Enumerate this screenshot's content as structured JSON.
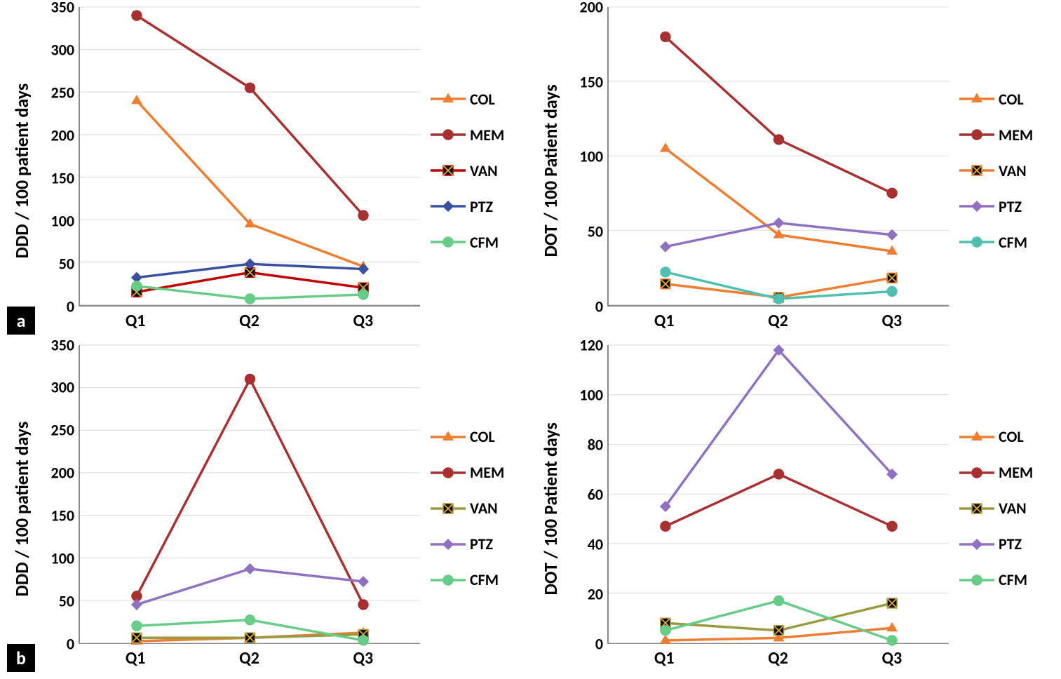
{
  "charts": [
    {
      "id": "a-left",
      "panel_label": "a",
      "ylabel": "DDD / 100 patient days",
      "ymin": 0,
      "ymax": 350,
      "ystep": 50,
      "categories": [
        "Q1",
        "Q2",
        "Q3"
      ],
      "series": [
        {
          "name": "COL",
          "color": "#ed7d31",
          "marker": "triangle",
          "fill": "#ed7d31",
          "values": [
            240,
            95,
            45
          ]
        },
        {
          "name": "MEM",
          "color": "#a83030",
          "marker": "circle",
          "fill": "#a83030",
          "values": [
            340,
            255,
            105
          ]
        },
        {
          "name": "VAN",
          "color": "#c00000",
          "marker": "square-x",
          "fill": "#000000",
          "values": [
            15,
            38,
            20
          ]
        },
        {
          "name": "PTZ",
          "color": "#3950a0",
          "marker": "diamond",
          "fill": "#3950a0",
          "values": [
            32,
            48,
            42
          ]
        },
        {
          "name": "CFM",
          "color": "#66cc88",
          "marker": "circle",
          "fill": "#66cc88",
          "values": [
            22,
            7,
            12
          ]
        }
      ]
    },
    {
      "id": "a-right",
      "panel_label": "",
      "ylabel": "DOT / 100 Patient days",
      "ymin": 0,
      "ymax": 200,
      "ystep": 50,
      "categories": [
        "Q1",
        "Q2",
        "Q3"
      ],
      "series": [
        {
          "name": "COL",
          "color": "#ed7d31",
          "marker": "triangle",
          "fill": "#ed7d31",
          "values": [
            105,
            47,
            36
          ]
        },
        {
          "name": "MEM",
          "color": "#a83030",
          "marker": "circle",
          "fill": "#a83030",
          "values": [
            180,
            111,
            75
          ]
        },
        {
          "name": "VAN",
          "color": "#ed7d31",
          "marker": "square-x",
          "fill": "#000000",
          "values": [
            14,
            5,
            18
          ]
        },
        {
          "name": "PTZ",
          "color": "#9070c0",
          "marker": "diamond",
          "fill": "#9070c0",
          "values": [
            39,
            55,
            47
          ]
        },
        {
          "name": "CFM",
          "color": "#4fc0b0",
          "marker": "circle",
          "fill": "#4fc0b0",
          "values": [
            22,
            4,
            9
          ]
        }
      ]
    },
    {
      "id": "b-left",
      "panel_label": "b",
      "ylabel": "DDD / 100 patient days",
      "ymin": 0,
      "ymax": 350,
      "ystep": 50,
      "categories": [
        "Q1",
        "Q2",
        "Q3"
      ],
      "series": [
        {
          "name": "COL",
          "color": "#ed7d31",
          "marker": "triangle",
          "fill": "#ed7d31",
          "values": [
            2,
            6,
            12
          ]
        },
        {
          "name": "MEM",
          "color": "#a83030",
          "marker": "circle",
          "fill": "#a83030",
          "values": [
            55,
            310,
            45
          ]
        },
        {
          "name": "VAN",
          "color": "#9a9a40",
          "marker": "square-x",
          "fill": "#000000",
          "values": [
            6,
            6,
            10
          ]
        },
        {
          "name": "PTZ",
          "color": "#9070c0",
          "marker": "diamond",
          "fill": "#9070c0",
          "values": [
            45,
            87,
            72
          ]
        },
        {
          "name": "CFM",
          "color": "#66cc88",
          "marker": "circle",
          "fill": "#66cc88",
          "values": [
            20,
            27,
            3
          ]
        }
      ]
    },
    {
      "id": "b-right",
      "panel_label": "",
      "ylabel": "DOT / 100 Patient days",
      "ymin": 0,
      "ymax": 120,
      "ystep": 20,
      "categories": [
        "Q1",
        "Q2",
        "Q3"
      ],
      "series": [
        {
          "name": "COL",
          "color": "#ed7d31",
          "marker": "triangle",
          "fill": "#ed7d31",
          "values": [
            1,
            2,
            6
          ]
        },
        {
          "name": "MEM",
          "color": "#a83030",
          "marker": "circle",
          "fill": "#a83030",
          "values": [
            47,
            68,
            47
          ]
        },
        {
          "name": "VAN",
          "color": "#9a9a40",
          "marker": "square-x",
          "fill": "#000000",
          "values": [
            8,
            5,
            16
          ]
        },
        {
          "name": "PTZ",
          "color": "#9070c0",
          "marker": "diamond",
          "fill": "#9070c0",
          "values": [
            55,
            118,
            68
          ]
        },
        {
          "name": "CFM",
          "color": "#66cc88",
          "marker": "circle",
          "fill": "#66cc88",
          "values": [
            5,
            17,
            1
          ]
        }
      ]
    }
  ],
  "style": {
    "background_color": "#ffffff",
    "grid_color": "#d9d9d9",
    "axis_color": "#888888",
    "line_width": 3.5,
    "marker_size": 7,
    "tick_fontsize": 22,
    "label_fontsize": 26,
    "legend_fontsize": 22,
    "font_weight": "bold"
  }
}
